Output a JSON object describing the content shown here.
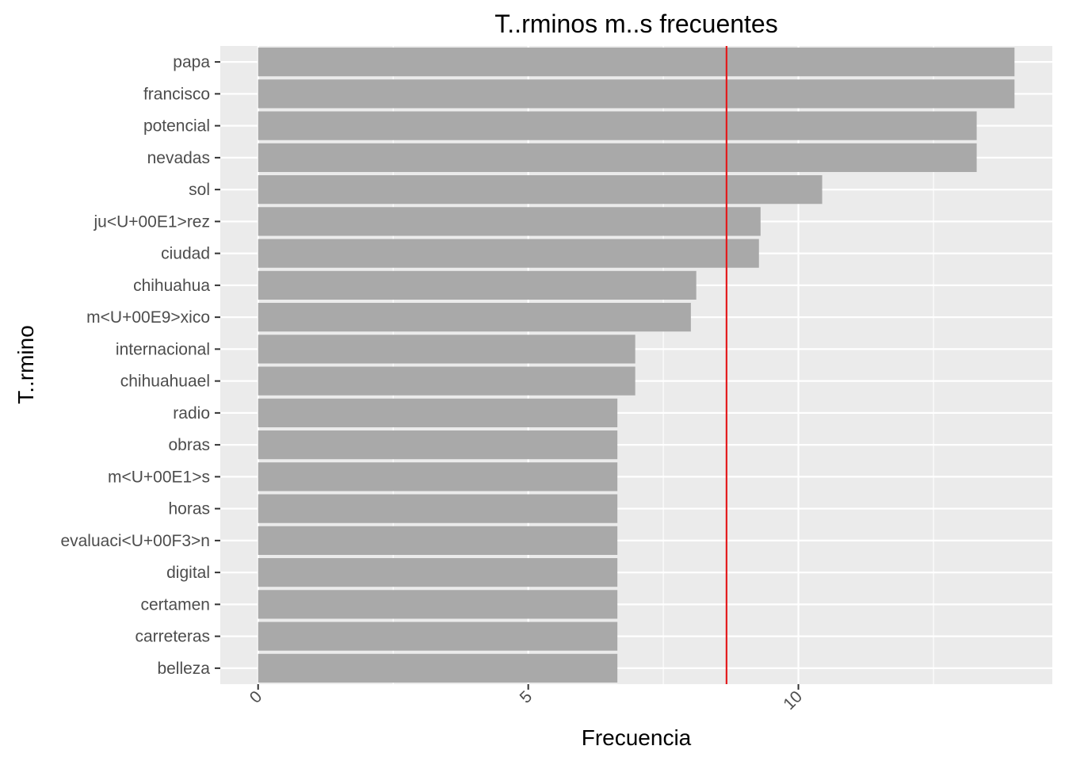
{
  "chart_data": {
    "type": "bar",
    "orientation": "horizontal",
    "title": "T..rminos m..s frecuentes",
    "xlabel": "Frecuencia",
    "ylabel": "T..rmino",
    "categories": [
      "papa",
      "francisco",
      "potencial",
      "nevadas",
      "sol",
      "ju<U+00E1>rez",
      "ciudad",
      "chihuahua",
      "m<U+00E9>xico",
      "internacional",
      "chihuahuael",
      "radio",
      "obras",
      "m<U+00E1>s",
      "horas",
      "evaluaci<U+00F3>n",
      "digital",
      "certamen",
      "carreteras",
      "belleza"
    ],
    "values": [
      14.0,
      14.0,
      13.3,
      13.3,
      10.44,
      9.3,
      9.27,
      8.11,
      8.01,
      6.98,
      6.98,
      6.65,
      6.65,
      6.65,
      6.65,
      6.65,
      6.65,
      6.65,
      6.65,
      6.65
    ],
    "reference_line": 8.67,
    "xlim": [
      -0.7,
      14.7
    ],
    "xticks": [
      0,
      5,
      10
    ],
    "xtick_labels": [
      "0",
      "5",
      "10"
    ],
    "grid": true,
    "colors": {
      "bar": "#a9a9a9",
      "panel": "#ebebeb",
      "grid": "#ffffff",
      "reference_line": "#e31a1c",
      "text": "#000000",
      "tick_text": "#4d4d4d"
    }
  }
}
